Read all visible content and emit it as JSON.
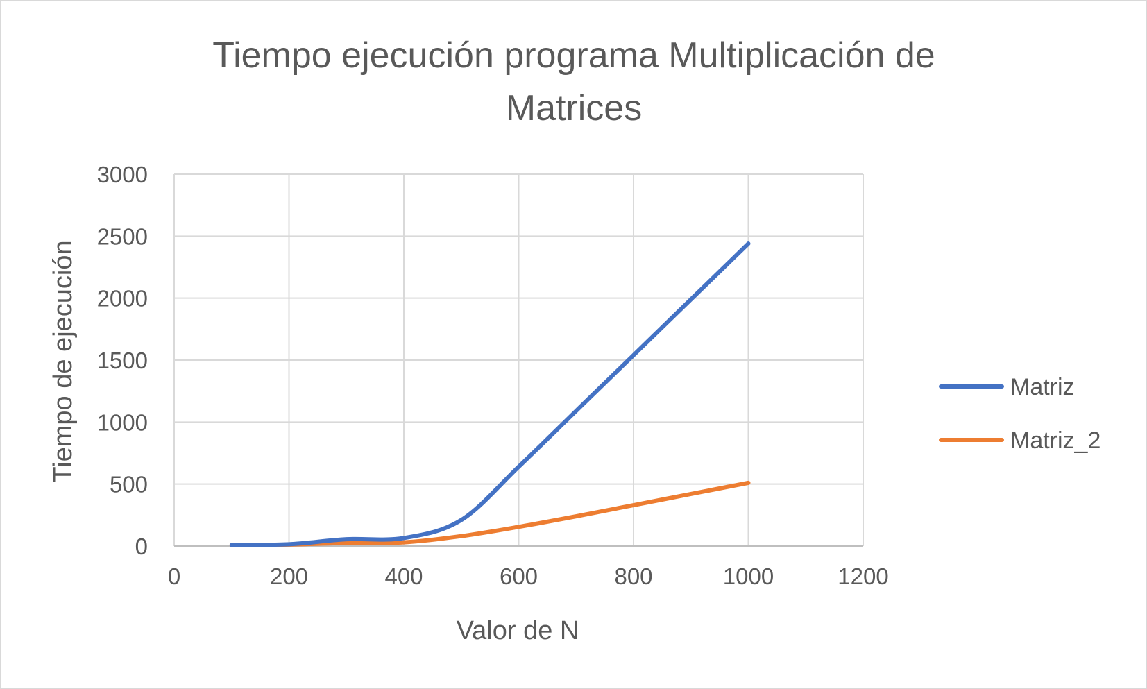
{
  "chart_data": {
    "type": "line",
    "title_line1": "Tiempo ejecución programa Multiplicación de",
    "title_line2": "Matrices",
    "xlabel": "Valor de N",
    "ylabel": "Tiempo de ejecución",
    "xlim": [
      0,
      1200
    ],
    "ylim": [
      0,
      3000
    ],
    "xticks": [
      0,
      200,
      400,
      600,
      800,
      1000,
      1200
    ],
    "yticks": [
      0,
      500,
      1000,
      1500,
      2000,
      2500,
      3000
    ],
    "grid": true,
    "legend_position": "right",
    "series": [
      {
        "name": "Matriz",
        "color": "#4472C4",
        "x": [
          100,
          200,
          300,
          400,
          500,
          600,
          700,
          800,
          900,
          1000
        ],
        "y": [
          8,
          15,
          55,
          65,
          210,
          640,
          1090,
          1540,
          1990,
          2440
        ]
      },
      {
        "name": "Matriz_2",
        "color": "#ED7D31",
        "x": [
          100,
          200,
          300,
          400,
          500,
          600,
          700,
          800,
          900,
          1000
        ],
        "y": [
          8,
          12,
          25,
          30,
          80,
          155,
          240,
          330,
          420,
          510
        ]
      }
    ]
  }
}
